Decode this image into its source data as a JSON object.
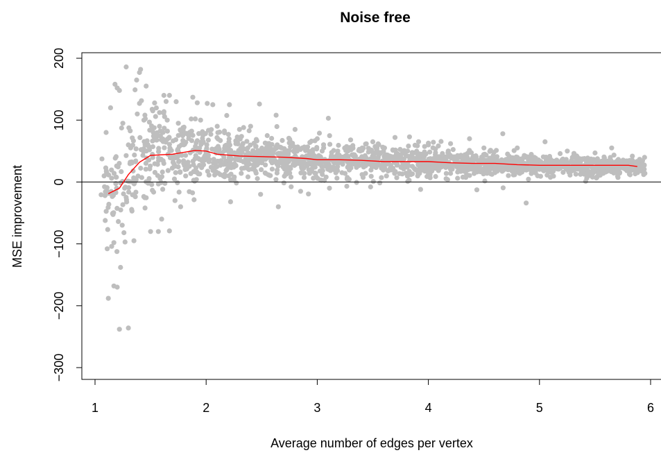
{
  "chart_data": {
    "type": "scatter",
    "title": "Noise free",
    "xlabel": "Average number of edges per vertex",
    "ylabel": "MSE improvement",
    "xlim": [
      1,
      6
    ],
    "ylim": [
      -300,
      200
    ],
    "x_ticks": [
      "1",
      "2",
      "3",
      "4",
      "5",
      "6"
    ],
    "y_ticks": [
      "−300",
      "−200",
      "−100",
      "0",
      "100",
      "200"
    ],
    "reference_line_y": 0,
    "grid": false,
    "legend": "none",
    "point_color": "#bebebe",
    "trend_color": "#ff0000",
    "series": [
      {
        "type": "scatter",
        "n_points_approx": 2000,
        "x_range": [
          1.05,
          5.95
        ],
        "points": [
          [
            1.28,
            186
          ],
          [
            1.41,
            182
          ],
          [
            1.4,
            177
          ],
          [
            1.18,
            158
          ],
          [
            1.2,
            152
          ],
          [
            1.22,
            148
          ],
          [
            1.46,
            155
          ],
          [
            1.36,
            149
          ],
          [
            1.62,
            140
          ],
          [
            1.67,
            140
          ],
          [
            1.88,
            137
          ],
          [
            1.92,
            128
          ],
          [
            2.01,
            127
          ],
          [
            2.06,
            125
          ],
          [
            2.21,
            125
          ],
          [
            2.48,
            126
          ],
          [
            2.63,
            108
          ],
          [
            3.1,
            103
          ],
          [
            4.67,
            78
          ],
          [
            3.83,
            73
          ],
          [
            1.12,
            -188
          ],
          [
            1.17,
            -168
          ],
          [
            1.2,
            -170
          ],
          [
            1.23,
            -138
          ],
          [
            1.22,
            -238
          ],
          [
            1.3,
            -236
          ],
          [
            1.11,
            -108
          ],
          [
            1.15,
            -104
          ],
          [
            1.17,
            -98
          ],
          [
            1.27,
            -97
          ],
          [
            1.35,
            -95
          ],
          [
            1.26,
            -82
          ],
          [
            1.5,
            -80
          ],
          [
            1.57,
            -80
          ],
          [
            1.67,
            -79
          ],
          [
            1.6,
            -60
          ],
          [
            1.09,
            -22
          ],
          [
            1.45,
            -42
          ],
          [
            1.72,
            -30
          ],
          [
            1.77,
            -40
          ],
          [
            2.22,
            -32
          ],
          [
            2.49,
            -20
          ],
          [
            2.65,
            -40
          ],
          [
            2.85,
            -15
          ],
          [
            3.11,
            -10
          ],
          [
            3.48,
            -8
          ],
          [
            3.93,
            -12
          ],
          [
            4.88,
            -34
          ],
          [
            1.1,
            80
          ],
          [
            1.14,
            120
          ],
          [
            1.25,
            95
          ],
          [
            1.3,
            60
          ],
          [
            1.38,
            110
          ],
          [
            1.44,
            100
          ],
          [
            1.52,
            115
          ],
          [
            1.58,
            90
          ],
          [
            1.65,
            100
          ],
          [
            1.75,
            95
          ],
          [
            1.85,
            80
          ],
          [
            1.95,
            100
          ],
          [
            2.1,
            90
          ],
          [
            2.3,
            85
          ],
          [
            2.4,
            90
          ],
          [
            2.55,
            75
          ],
          [
            2.8,
            85
          ],
          [
            3.0,
            70
          ],
          [
            3.3,
            68
          ],
          [
            3.5,
            65
          ],
          [
            3.7,
            72
          ],
          [
            4.0,
            60
          ],
          [
            4.2,
            62
          ],
          [
            4.37,
            70
          ],
          [
            4.5,
            55
          ],
          [
            4.8,
            55
          ],
          [
            5.05,
            65
          ],
          [
            5.25,
            50
          ],
          [
            5.5,
            47
          ],
          [
            5.65,
            55
          ],
          [
            5.87,
            20
          ],
          [
            5.93,
            24
          ]
        ],
        "band_points_count": 1900,
        "band_mean": [
          [
            1.1,
            -20
          ],
          [
            1.2,
            -10
          ],
          [
            1.3,
            12
          ],
          [
            1.4,
            32
          ],
          [
            1.5,
            44
          ],
          [
            1.7,
            46
          ],
          [
            1.9,
            51
          ],
          [
            2.0,
            50
          ],
          [
            2.2,
            43
          ],
          [
            2.5,
            41
          ],
          [
            2.8,
            39
          ],
          [
            3.0,
            36
          ],
          [
            3.3,
            36
          ],
          [
            3.6,
            33
          ],
          [
            4.0,
            32
          ],
          [
            4.5,
            29
          ],
          [
            5.0,
            27
          ],
          [
            5.5,
            26
          ],
          [
            5.8,
            26
          ]
        ],
        "band_halfwidth": [
          [
            1.1,
            60
          ],
          [
            1.3,
            75
          ],
          [
            1.5,
            70
          ],
          [
            1.8,
            55
          ],
          [
            2.0,
            40
          ],
          [
            2.5,
            30
          ],
          [
            3.0,
            26
          ],
          [
            3.5,
            24
          ],
          [
            4.0,
            20
          ],
          [
            4.5,
            18
          ],
          [
            5.0,
            15
          ],
          [
            5.5,
            14
          ],
          [
            5.9,
            12
          ]
        ]
      },
      {
        "type": "line",
        "x": [
          1.12,
          1.22,
          1.3,
          1.4,
          1.5,
          1.7,
          1.9,
          2.0,
          2.1,
          2.3,
          2.5,
          2.7,
          2.9,
          3.0,
          3.2,
          3.4,
          3.6,
          3.8,
          4.0,
          4.2,
          4.4,
          4.6,
          4.8,
          5.0,
          5.2,
          5.4,
          5.6,
          5.8,
          5.88
        ],
        "y": [
          -19,
          -10,
          12,
          32,
          43,
          45,
          51,
          50,
          45,
          42,
          41,
          40,
          38,
          36,
          36,
          35,
          33,
          33,
          33,
          31,
          30,
          30,
          28,
          27,
          27,
          27,
          27,
          27,
          25
        ]
      }
    ]
  }
}
